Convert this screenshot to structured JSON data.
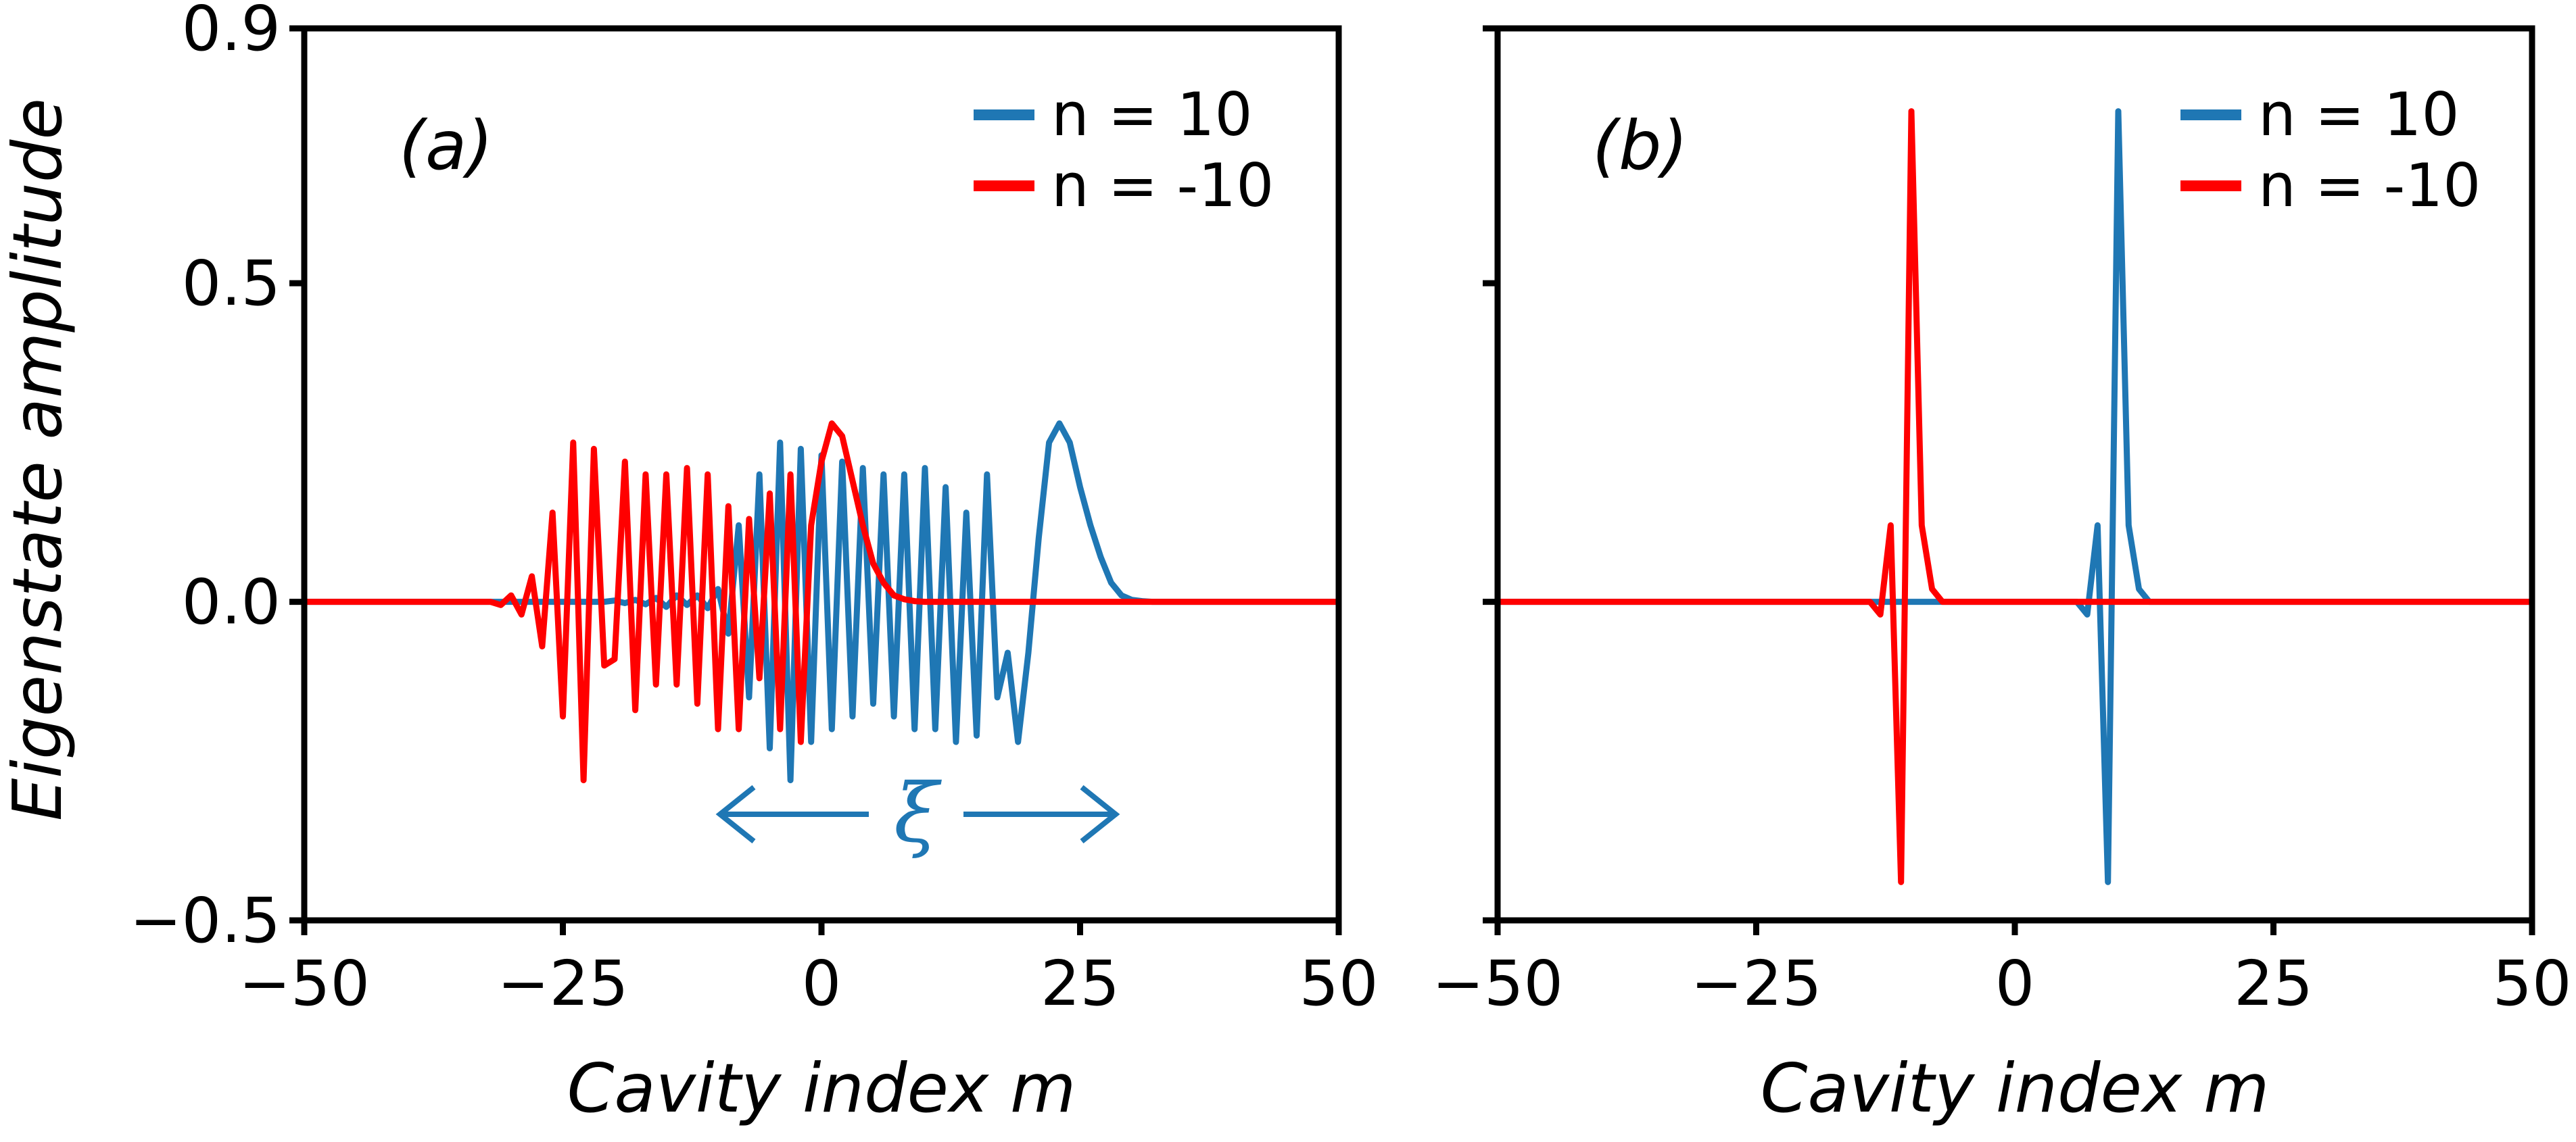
{
  "colors": {
    "blue": "#1f77b4",
    "red": "#ff0000"
  },
  "ylabel": "Eigenstate amplitude",
  "chart_data": [
    {
      "type": "line",
      "panel": "(a)",
      "xlabel": "Cavity index m",
      "xlim": [
        -50,
        50
      ],
      "ylim": [
        -0.5,
        0.9
      ],
      "xticks": [
        -50,
        -25,
        0,
        25,
        50
      ],
      "xtick_labels": [
        "−50",
        "−25",
        "0",
        "25",
        "50"
      ],
      "yticks": [
        -0.5,
        0.0,
        0.5,
        0.9
      ],
      "ytick_labels": [
        "−0.5",
        "0.0",
        "0.5",
        "0.9"
      ],
      "legend": [
        "n = 10",
        "n = -10"
      ],
      "annotation": {
        "text": "ξ",
        "arrow_from": -10,
        "arrow_to": 29,
        "y": -0.33
      },
      "series": [
        {
          "name": "n = 10",
          "color": "#1f77b4",
          "x": [
            -50,
            -22,
            -21,
            -20,
            -19,
            -18,
            -17,
            -16,
            -15,
            -14,
            -13,
            -12,
            -11,
            -10,
            -9,
            -8,
            -7,
            -6,
            -5,
            -4,
            -3,
            -2,
            -1,
            0,
            1,
            2,
            3,
            4,
            5,
            6,
            7,
            8,
            9,
            10,
            11,
            12,
            13,
            14,
            15,
            16,
            17,
            18,
            19,
            20,
            21,
            22,
            23,
            24,
            25,
            26,
            27,
            28,
            29,
            30,
            31,
            32,
            33,
            50
          ],
          "y": [
            0,
            0,
            0,
            0.002,
            -0.002,
            0.003,
            -0.004,
            0.006,
            -0.008,
            0.01,
            -0.005,
            0.01,
            -0.01,
            0.02,
            -0.05,
            0.12,
            -0.15,
            0.2,
            -0.23,
            0.25,
            -0.28,
            0.24,
            -0.22,
            0.23,
            -0.2,
            0.22,
            -0.18,
            0.21,
            -0.16,
            0.2,
            -0.18,
            0.2,
            -0.2,
            0.21,
            -0.2,
            0.18,
            -0.22,
            0.14,
            -0.21,
            0.2,
            -0.15,
            -0.08,
            -0.22,
            -0.08,
            0.1,
            0.25,
            0.28,
            0.25,
            0.18,
            0.12,
            0.07,
            0.03,
            0.01,
            0.003,
            0.001,
            0,
            0,
            0
          ]
        },
        {
          "name": "n = -10",
          "color": "#ff0000",
          "x": [
            -50,
            -33,
            -32,
            -31,
            -30,
            -29,
            -28,
            -27,
            -26,
            -25,
            -24,
            -23,
            -22,
            -21,
            -20,
            -19,
            -18,
            -17,
            -16,
            -15,
            -14,
            -13,
            -12,
            -11,
            -10,
            -9,
            -8,
            -7,
            -6,
            -5,
            -4,
            -3,
            -2,
            -1,
            0,
            1,
            2,
            3,
            4,
            5,
            6,
            7,
            8,
            9,
            10,
            11,
            12,
            50
          ],
          "y": [
            0,
            0,
            0,
            -0.005,
            0.01,
            -0.02,
            0.04,
            -0.07,
            0.14,
            -0.18,
            0.25,
            -0.28,
            0.24,
            -0.1,
            -0.09,
            0.22,
            -0.17,
            0.2,
            -0.13,
            0.2,
            -0.13,
            0.21,
            -0.16,
            0.2,
            -0.2,
            0.15,
            -0.2,
            0.13,
            -0.12,
            0.17,
            -0.2,
            0.2,
            -0.22,
            0.12,
            0.22,
            0.28,
            0.26,
            0.19,
            0.12,
            0.06,
            0.03,
            0.01,
            0.004,
            0.001,
            0,
            0,
            0,
            0
          ]
        }
      ]
    },
    {
      "type": "line",
      "panel": "(b)",
      "xlabel": "Cavity index m",
      "xlim": [
        -50,
        50
      ],
      "ylim": [
        -0.5,
        0.9
      ],
      "xticks": [
        -50,
        -25,
        0,
        25,
        50
      ],
      "xtick_labels": [
        "−50",
        "−25",
        "0",
        "25",
        "50"
      ],
      "yticks": [
        -0.5,
        0.0,
        0.5,
        0.9
      ],
      "legend": [
        "n = 10",
        "n = -10"
      ],
      "series": [
        {
          "name": "n = 10",
          "color": "#1f77b4",
          "x": [
            -50,
            5,
            6,
            7,
            8,
            9,
            10,
            11,
            12,
            13,
            14,
            50
          ],
          "y": [
            0,
            0,
            0,
            -0.02,
            0.12,
            -0.44,
            0.77,
            0.12,
            0.02,
            0,
            0,
            0
          ]
        },
        {
          "name": "n = -10",
          "color": "#ff0000",
          "x": [
            -50,
            -14,
            -13,
            -12,
            -11,
            -10,
            -9,
            -8,
            -7,
            -6,
            -5,
            50
          ],
          "y": [
            0,
            0,
            -0.02,
            0.12,
            -0.44,
            0.77,
            0.12,
            0.02,
            0,
            0,
            0,
            0
          ]
        }
      ]
    }
  ]
}
